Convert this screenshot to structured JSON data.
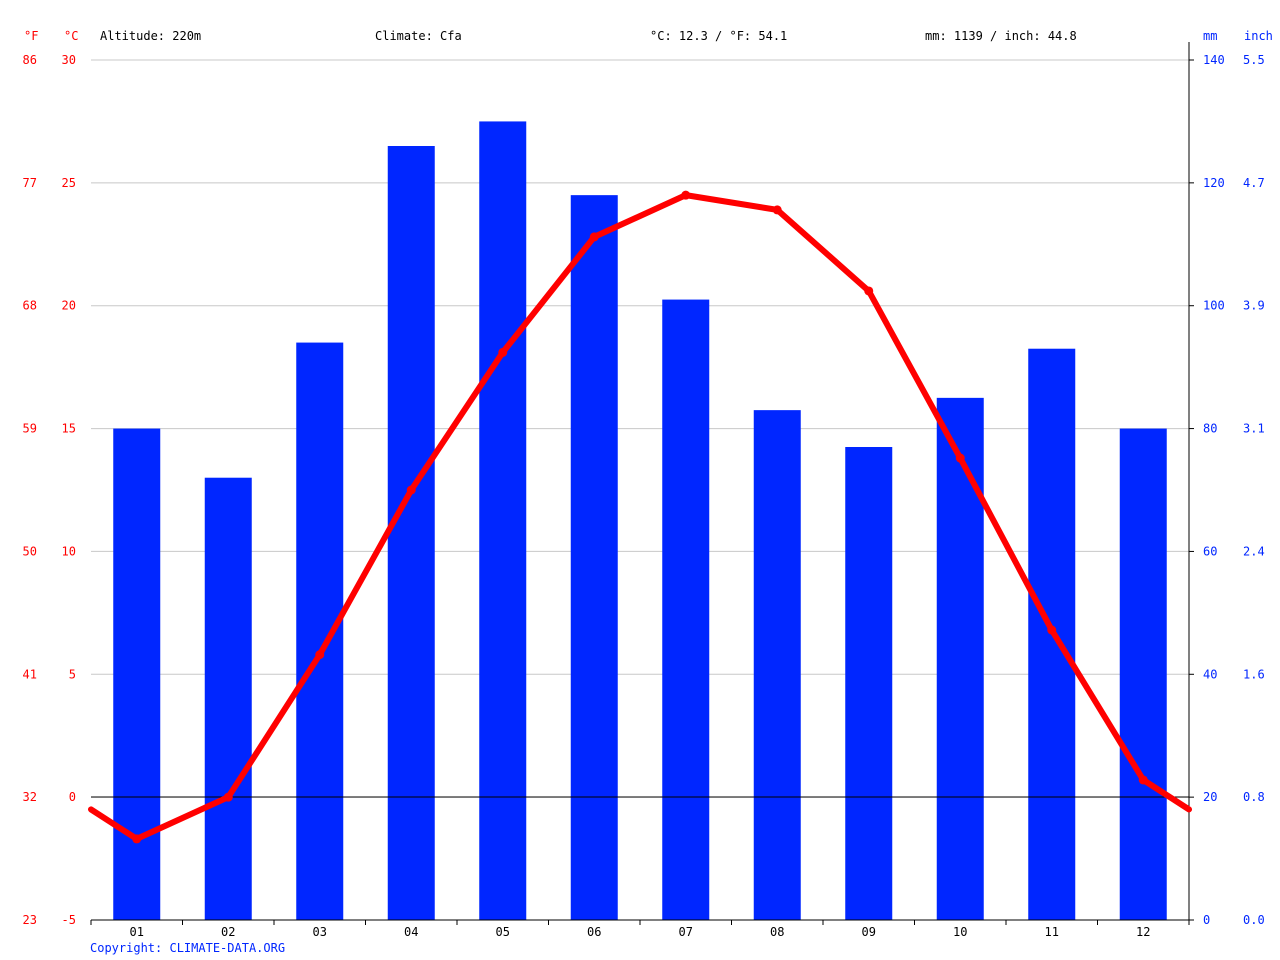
{
  "header": {
    "unit_f": "°F",
    "unit_c": "°C",
    "altitude": "Altitude: 220m",
    "climate": "Climate: Cfa",
    "temp_summary": "°C: 12.3 / °F: 54.1",
    "precip_summary": "mm: 1139 / inch: 44.8",
    "unit_mm": "mm",
    "unit_inch": "inch"
  },
  "footer": {
    "copyright": "Copyright: CLIMATE-DATA.ORG"
  },
  "colors": {
    "temperature": "#ff0000",
    "precipitation": "#0026ff",
    "grid": "#c8c8c8",
    "axis": "#000000"
  },
  "chart_data": {
    "type": "bar",
    "categories": [
      "01",
      "02",
      "03",
      "04",
      "05",
      "06",
      "07",
      "08",
      "09",
      "10",
      "11",
      "12"
    ],
    "series": [
      {
        "type": "bar",
        "axis": "right",
        "values": [
          80,
          72,
          94,
          126,
          130,
          118,
          101,
          83,
          77,
          85,
          93,
          80
        ]
      },
      {
        "type": "line",
        "axis": "left",
        "values": [
          -1.7,
          0.0,
          5.8,
          12.5,
          18.1,
          22.8,
          24.5,
          23.9,
          20.6,
          13.8,
          6.8,
          0.7
        ]
      }
    ],
    "y_left": {
      "ticks_c": [
        "-5",
        "0",
        "5",
        "10",
        "15",
        "20",
        "25",
        "30"
      ],
      "ticks_f": [
        "23",
        "32",
        "41",
        "50",
        "59",
        "68",
        "77",
        "86"
      ],
      "range": [
        -5,
        30
      ]
    },
    "y_right": {
      "ticks_mm": [
        "0",
        "20",
        "40",
        "60",
        "80",
        "100",
        "120",
        "140"
      ],
      "ticks_inch": [
        "0.0",
        "0.8",
        "1.6",
        "2.4",
        "3.1",
        "3.9",
        "4.7",
        "5.5"
      ],
      "range": [
        0,
        140
      ]
    },
    "grid": true
  }
}
